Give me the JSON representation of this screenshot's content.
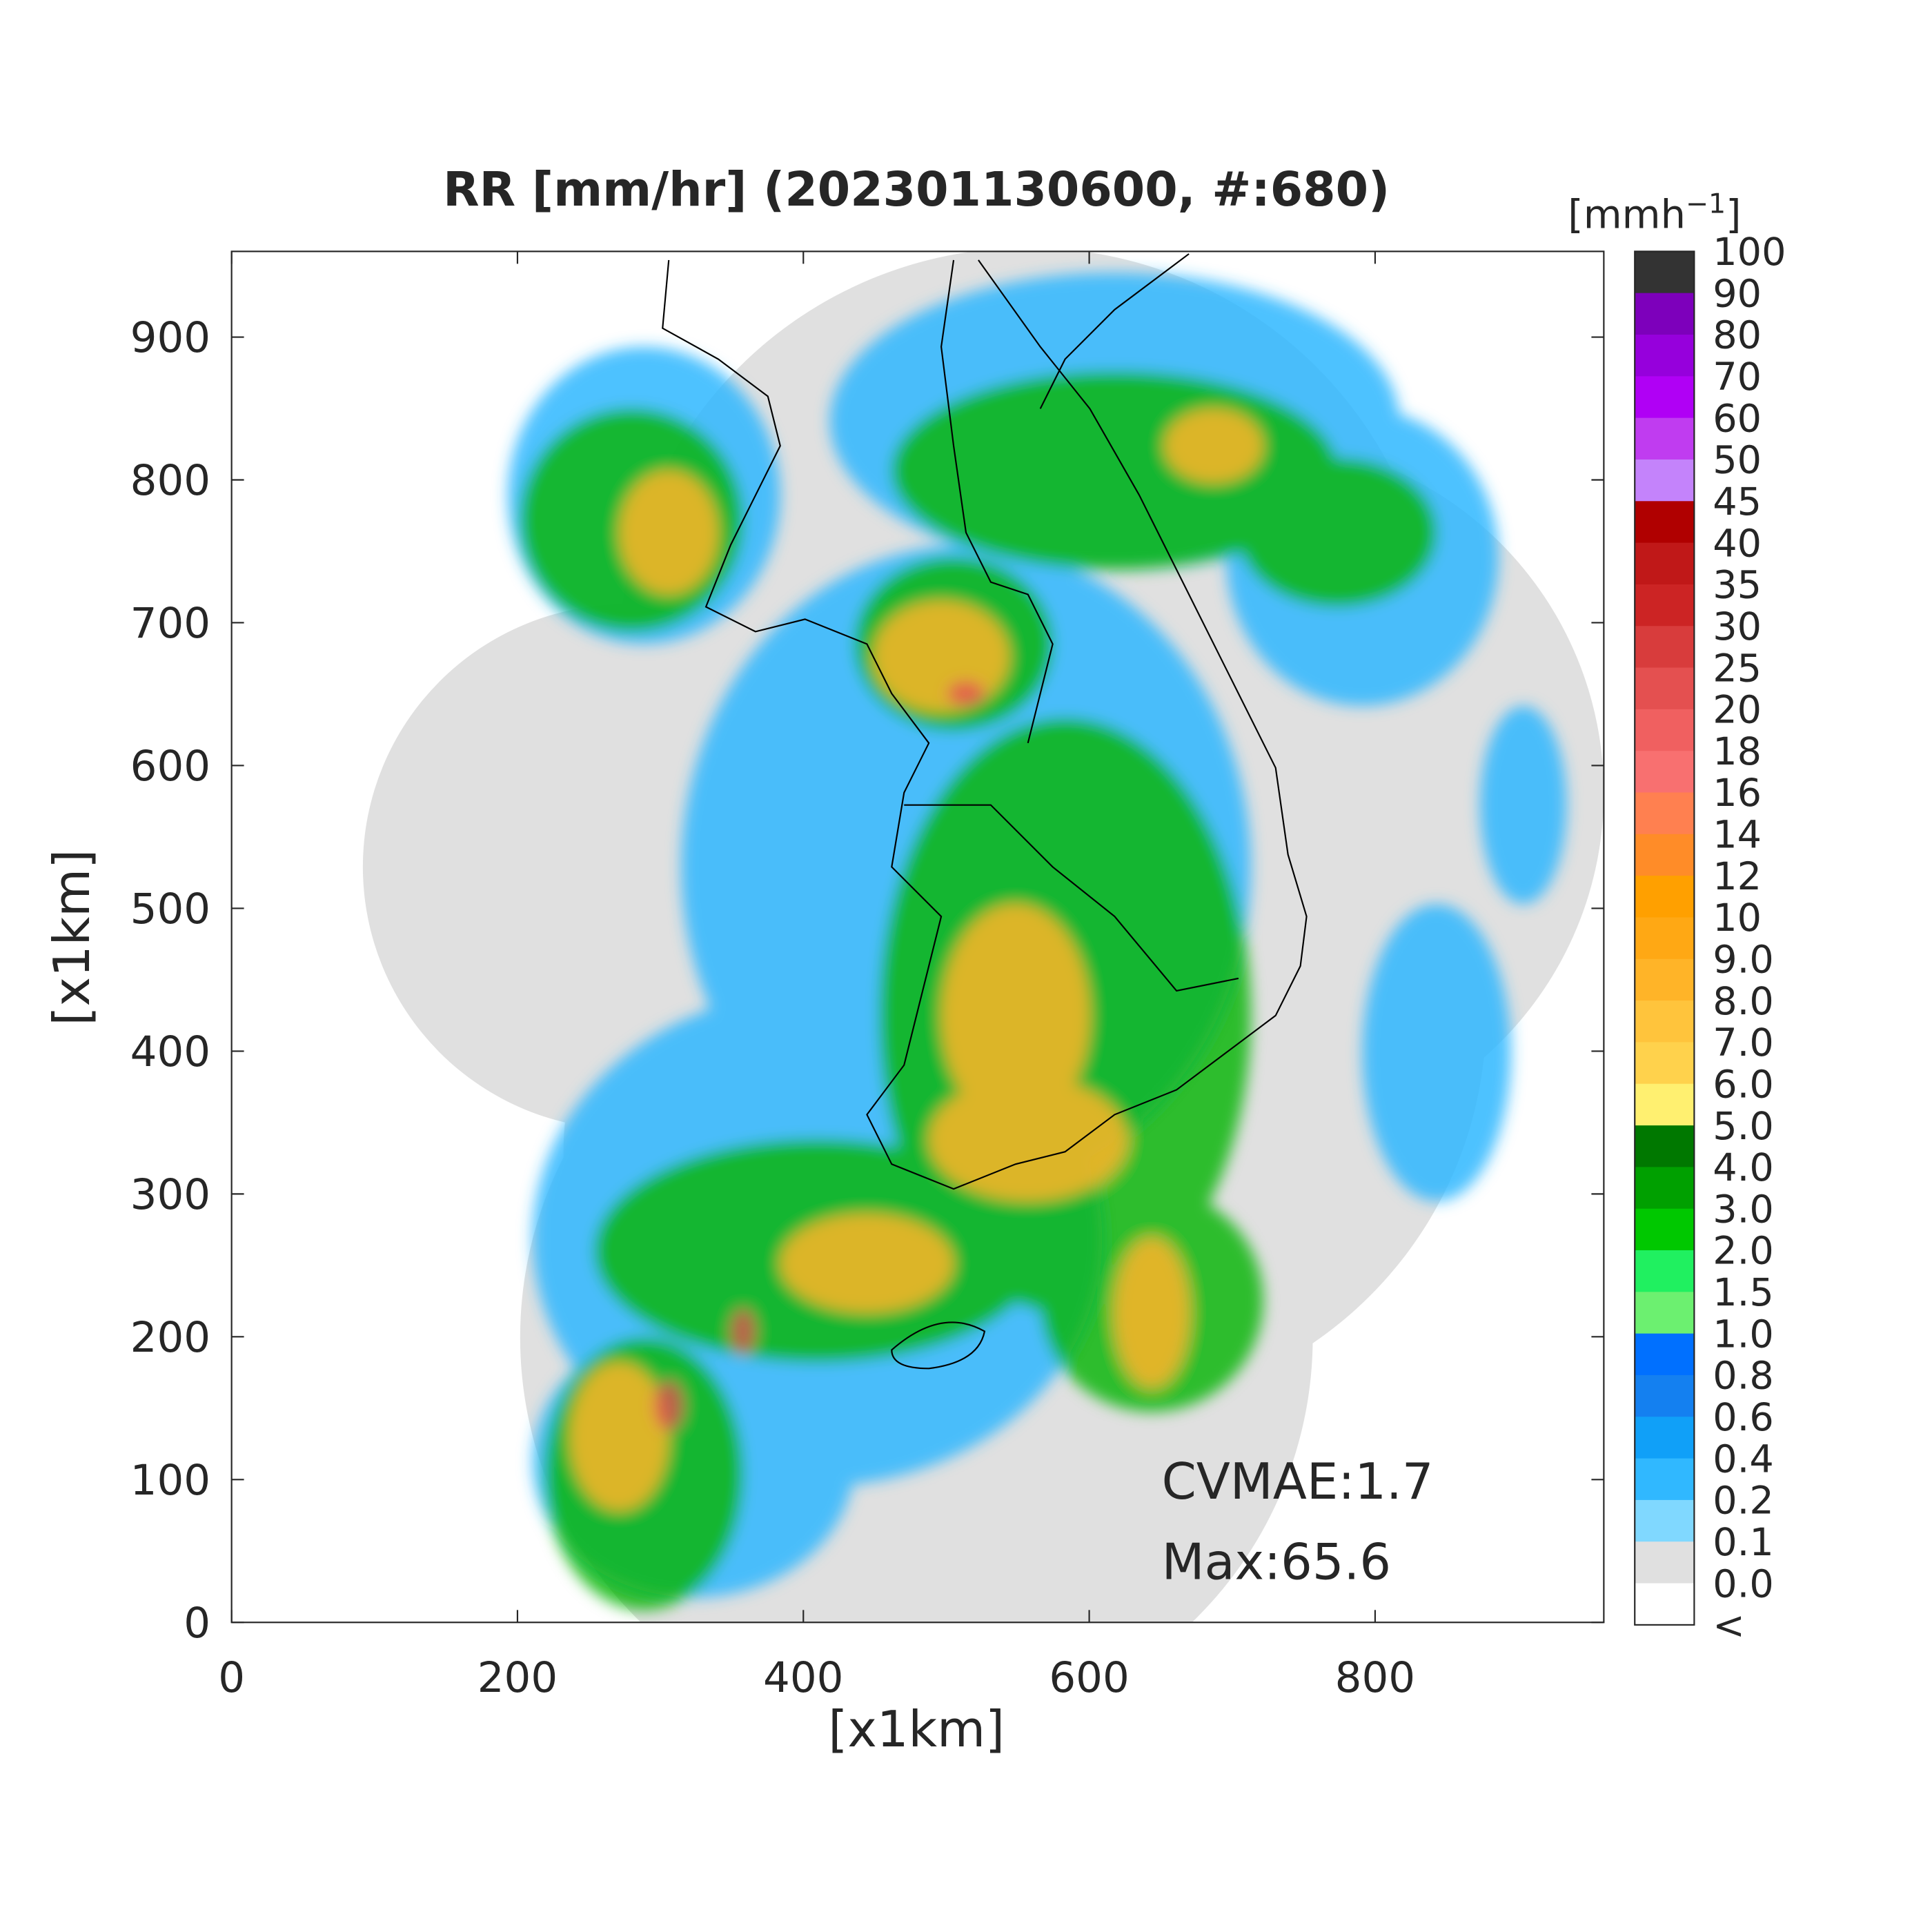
{
  "title": "RR [mm/hr] (202301130600, #:680)",
  "x_axis": {
    "label": "[x1km]",
    "lim": [
      0,
      960
    ],
    "ticks": [
      0,
      200,
      400,
      600,
      800
    ]
  },
  "y_axis": {
    "label": "[x1km]",
    "lim": [
      0,
      960
    ],
    "ticks": [
      0,
      100,
      200,
      300,
      400,
      500,
      600,
      700,
      800,
      900
    ]
  },
  "colorbar": {
    "unit": "[mmh",
    "unit_superscript": "−1",
    "unit_close": "]",
    "labels": [
      "100",
      "90",
      "80",
      "70",
      "60",
      "50",
      "45",
      "40",
      "35",
      "30",
      "25",
      "20",
      "18",
      "16",
      "14",
      "12",
      "10",
      "9.0",
      "8.0",
      "7.0",
      "6.0",
      "5.0",
      "4.0",
      "3.0",
      "2.0",
      "1.5",
      "1.0",
      "0.8",
      "0.6",
      "0.4",
      "0.2",
      "0.1",
      "0.0",
      "<"
    ],
    "colors": [
      "#333333",
      "#7d00bb",
      "#9600dc",
      "#b000f5",
      "#c03cf0",
      "#c483fb",
      "#b00000",
      "#c01818",
      "#cc2424",
      "#d83c3c",
      "#e45050",
      "#f06060",
      "#f87070",
      "#ff8050",
      "#ff8c28",
      "#ffa000",
      "#ffa814",
      "#ffb428",
      "#ffc43c",
      "#ffd24c",
      "#fff070",
      "#007800",
      "#00a000",
      "#00c800",
      "#20f060",
      "#6cf070",
      "#0070ff",
      "#1480f0",
      "#10a0f8",
      "#30b8ff",
      "#80d8ff",
      "#e0e0e0",
      "#ffffff"
    ]
  },
  "annotations": [
    "CVMAE:1.7",
    "Max:65.6"
  ]
}
